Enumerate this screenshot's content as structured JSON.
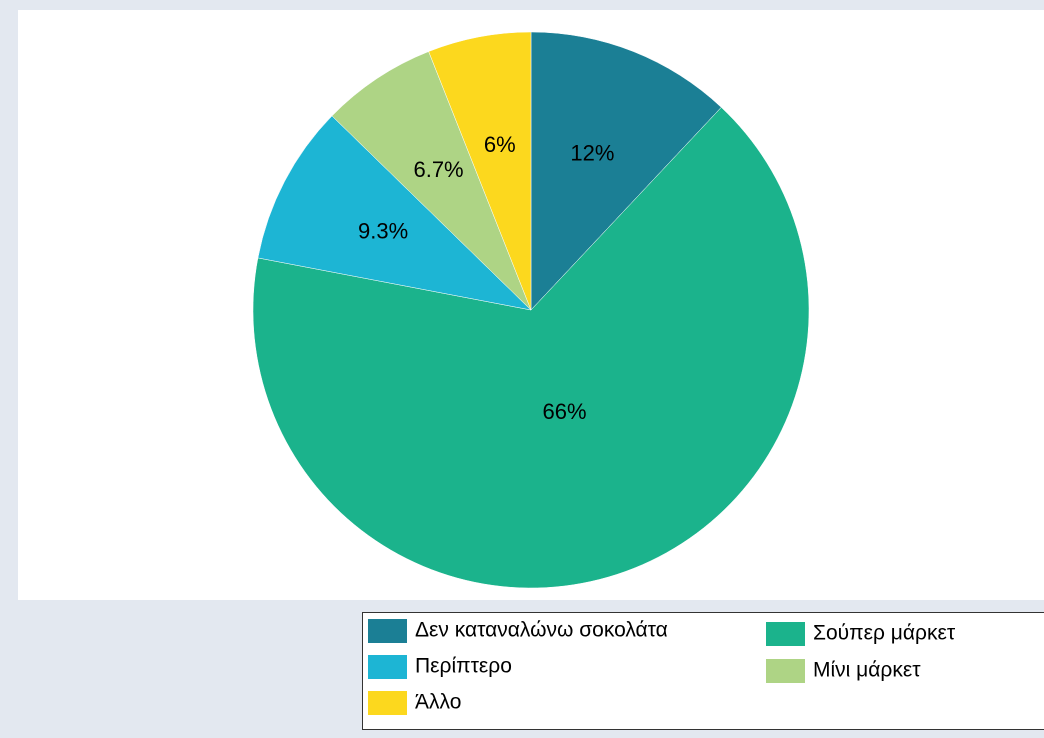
{
  "chart_data": {
    "type": "pie",
    "categories": [
      "Δεν καταναλώνω σοκολάτα",
      "Σούπερ μάρκετ",
      "Περίπτερο",
      "Μίνι μάρκετ",
      "Άλλο"
    ],
    "values": [
      12,
      66,
      9.3,
      6.7,
      6
    ],
    "value_labels": [
      "12%",
      "66%",
      "9.3%",
      "6.7%",
      "6%"
    ],
    "colors": [
      "#1b7f95",
      "#1bb38c",
      "#1db5d4",
      "#aed485",
      "#fcd81e"
    ],
    "legend": "bottom"
  }
}
